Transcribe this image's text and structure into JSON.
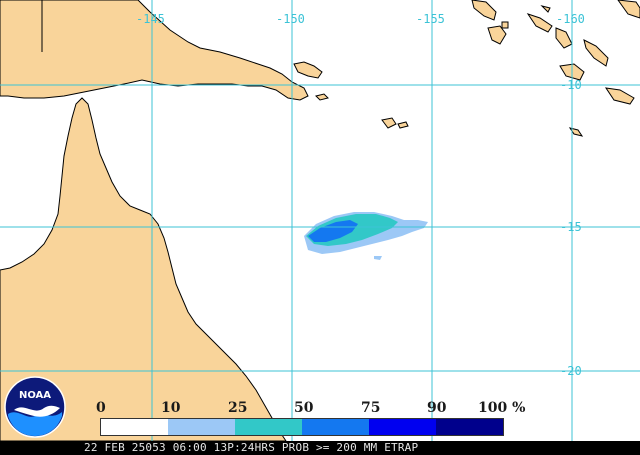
{
  "map": {
    "longitude_labels": [
      {
        "text": "-145",
        "id": "lon-145"
      },
      {
        "text": "-150",
        "id": "lon-150"
      },
      {
        "text": "-155",
        "id": "lon-155"
      },
      {
        "text": "-160",
        "id": "lon-160"
      }
    ],
    "latitude_labels": [
      {
        "text": "-10",
        "id": "lat-10"
      },
      {
        "text": "-15",
        "id": "lat-15"
      },
      {
        "text": "-20",
        "id": "lat-20"
      }
    ],
    "land_color": "#f9d49a",
    "ocean_color": "#ffffff",
    "grid_color": "#3cc3d6",
    "coast_color": "#000000"
  },
  "legend": {
    "tick_labels": [
      "0",
      "10",
      "25",
      "50",
      "75",
      "90",
      "100 %"
    ],
    "colors": [
      "#ffffff",
      "#9cc8f6",
      "#32c8c8",
      "#1478f0",
      "#0000f0",
      "#00008c"
    ]
  },
  "footer": {
    "text": "22 FEB 25053 06:00 13P:24HRS PROB >= 200 MM ETRAP"
  },
  "logo": {
    "text": "NOAA"
  }
}
